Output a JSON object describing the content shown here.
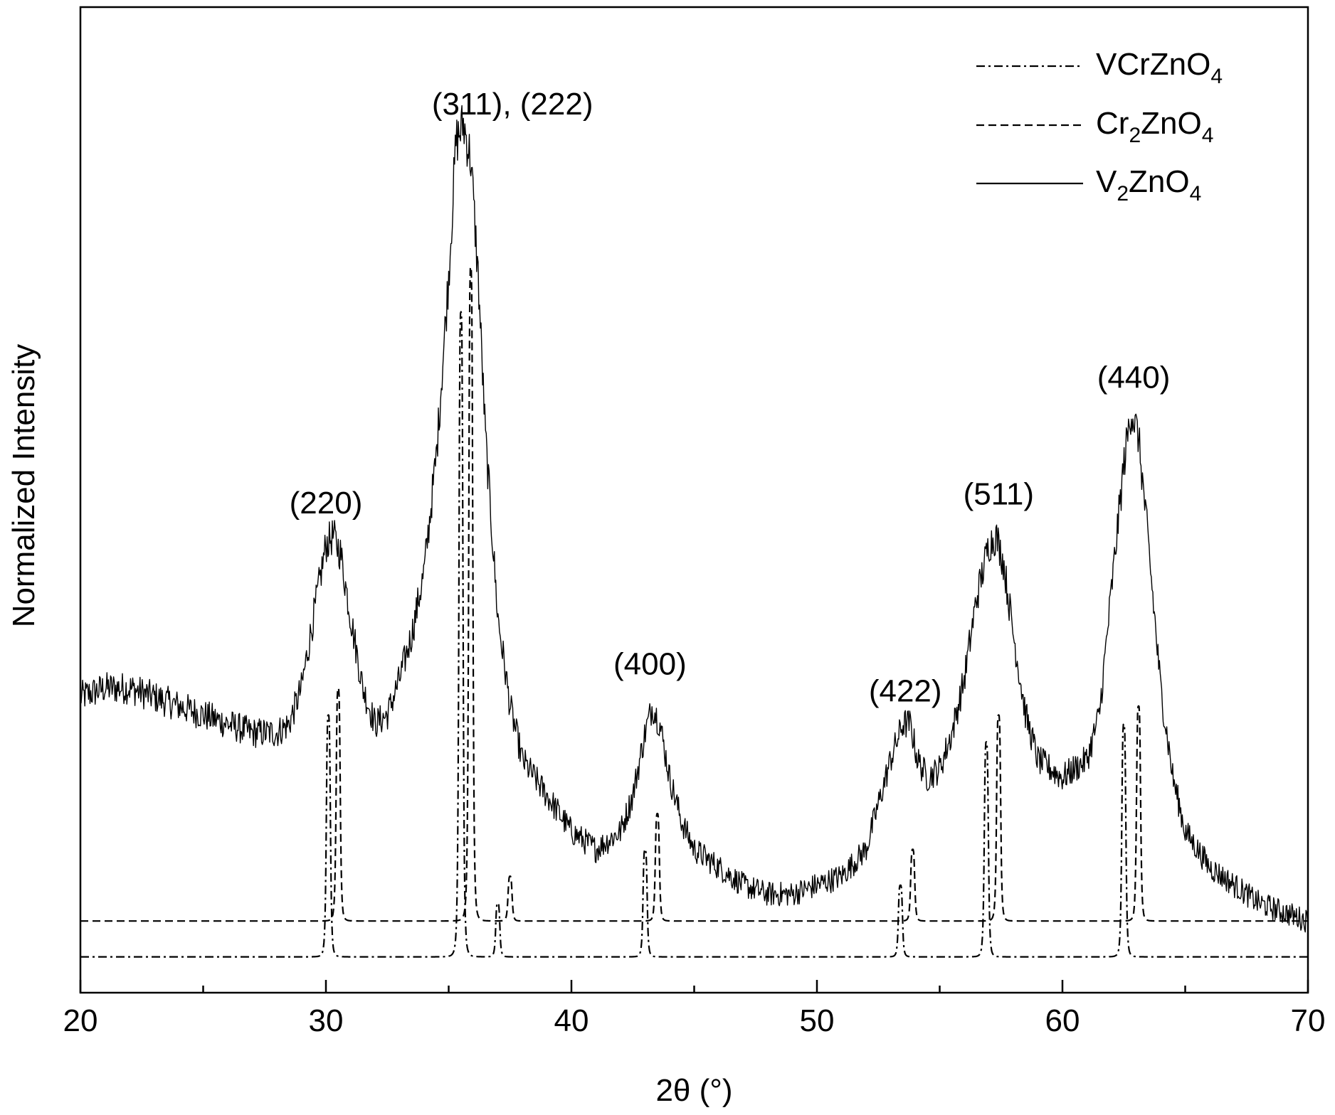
{
  "chart_data": {
    "type": "line",
    "title": "",
    "xlabel": "2θ (°)",
    "ylabel": "Normalized Intensity",
    "xlim": [
      20,
      70
    ],
    "y_units": "normalized (no tick labels)",
    "ylim": [
      0,
      1.1
    ],
    "grid": false,
    "x_ticks": [
      "20",
      "30",
      "40",
      "50",
      "60",
      "70"
    ],
    "legend_position": "top-right",
    "legend": [
      {
        "series": "VCrZnO4",
        "formula": "VCrZnO",
        "subscript": "4",
        "style": "dash-dot"
      },
      {
        "series": "Cr2ZnO4",
        "formula": "Cr",
        "sub1": "2",
        "mid": "ZnO",
        "sub2": "4",
        "style": "dashed"
      },
      {
        "series": "V2ZnO4",
        "formula": "V",
        "sub1": "2",
        "mid": "ZnO",
        "sub2": "4",
        "style": "solid"
      }
    ],
    "peak_labels": [
      {
        "text": "(220)",
        "x": 30.0,
        "y": 0.535
      },
      {
        "text": "(311), (222)",
        "x": 37.6,
        "y": 0.98
      },
      {
        "text": "(400)",
        "x": 43.2,
        "y": 0.355
      },
      {
        "text": "(422)",
        "x": 53.6,
        "y": 0.325
      },
      {
        "text": "(511)",
        "x": 57.4,
        "y": 0.545
      },
      {
        "text": "(440)",
        "x": 62.9,
        "y": 0.675
      }
    ],
    "series": [
      {
        "name": "V2ZnO4",
        "style": "solid",
        "x": [
          20,
          21,
          22,
          23,
          24,
          25,
          26,
          27,
          28,
          28.5,
          29,
          29.5,
          30,
          30.3,
          30.6,
          31,
          31.5,
          32,
          32.5,
          33,
          33.5,
          34,
          34.5,
          35,
          35.3,
          35.6,
          35.9,
          36.2,
          36.5,
          37,
          37.5,
          38,
          38.5,
          39,
          40,
          41,
          42,
          42.5,
          43,
          43.3,
          43.6,
          44,
          44.5,
          45,
          46,
          47,
          48,
          49,
          50,
          51,
          52,
          52.5,
          53,
          53.5,
          53.8,
          54.1,
          54.5,
          55,
          55.5,
          56,
          56.5,
          57,
          57.3,
          57.6,
          58,
          58.5,
          59,
          60,
          61,
          61.5,
          62,
          62.5,
          62.8,
          63.1,
          63.5,
          64,
          64.5,
          65,
          66,
          67,
          68,
          69,
          70
        ],
        "values": [
          0.33,
          0.34,
          0.34,
          0.33,
          0.32,
          0.31,
          0.3,
          0.29,
          0.29,
          0.3,
          0.34,
          0.42,
          0.5,
          0.51,
          0.49,
          0.42,
          0.34,
          0.3,
          0.31,
          0.35,
          0.4,
          0.47,
          0.6,
          0.8,
          0.95,
          0.97,
          0.93,
          0.8,
          0.62,
          0.42,
          0.32,
          0.26,
          0.24,
          0.22,
          0.18,
          0.16,
          0.18,
          0.22,
          0.29,
          0.32,
          0.3,
          0.24,
          0.19,
          0.16,
          0.14,
          0.12,
          0.11,
          0.11,
          0.12,
          0.13,
          0.16,
          0.21,
          0.26,
          0.3,
          0.3,
          0.26,
          0.24,
          0.25,
          0.29,
          0.35,
          0.44,
          0.5,
          0.51,
          0.48,
          0.4,
          0.31,
          0.26,
          0.24,
          0.26,
          0.31,
          0.45,
          0.59,
          0.65,
          0.62,
          0.5,
          0.34,
          0.24,
          0.18,
          0.14,
          0.12,
          0.1,
          0.09,
          0.08
        ]
      },
      {
        "name": "Cr2ZnO4",
        "style": "dashed",
        "baseline": 0.08,
        "peaks": [
          {
            "x": 30.5,
            "h": 0.26
          },
          {
            "x": 35.9,
            "h": 0.73
          },
          {
            "x": 37.5,
            "h": 0.05
          },
          {
            "x": 43.5,
            "h": 0.12
          },
          {
            "x": 53.9,
            "h": 0.08
          },
          {
            "x": 57.4,
            "h": 0.23
          },
          {
            "x": 63.1,
            "h": 0.24
          }
        ]
      },
      {
        "name": "VCrZnO4",
        "style": "dash-dot",
        "baseline": 0.04,
        "peaks": [
          {
            "x": 30.1,
            "h": 0.27
          },
          {
            "x": 35.5,
            "h": 0.72
          },
          {
            "x": 37.0,
            "h": 0.06
          },
          {
            "x": 43.0,
            "h": 0.12
          },
          {
            "x": 53.4,
            "h": 0.08
          },
          {
            "x": 56.9,
            "h": 0.24
          },
          {
            "x": 62.5,
            "h": 0.26
          }
        ]
      }
    ]
  }
}
